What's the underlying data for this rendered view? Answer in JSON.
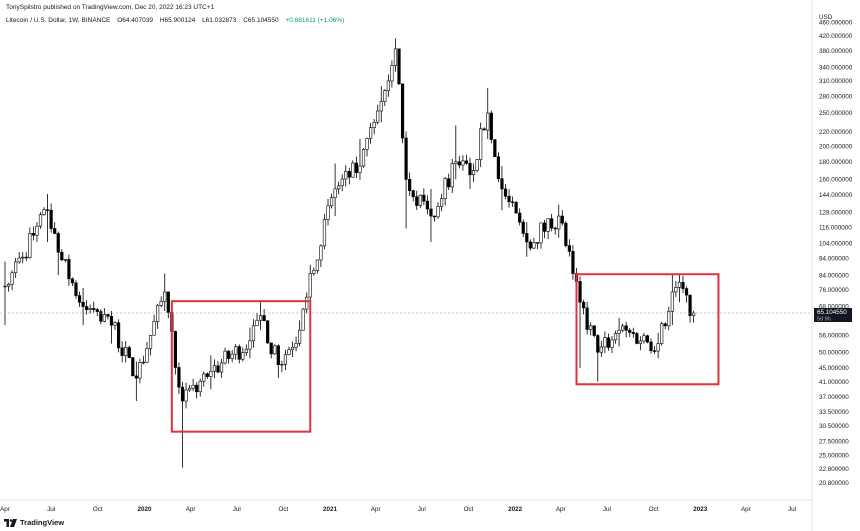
{
  "header": {
    "published": "TonySpilstro published on TradingView.com, Dec 20, 2022 16:23 UTC+1",
    "symbol": "Litecoin / U.S. Dollar, 1W, BINANCE",
    "open": "O64.407039",
    "high": "H65.900124",
    "low": "L61.032873",
    "close": "C65.104550",
    "change": "+0.681611 (+1.06%)"
  },
  "footer": {
    "brand": "TradingView"
  },
  "colors": {
    "candle_up": "#ffffff",
    "candle_down": "#000000",
    "candle_border": "#000000",
    "box": "#e0313b",
    "price_label_bg": "#131722"
  },
  "chart_data": {
    "type": "candlestick",
    "title": "Litecoin / U.S. Dollar, 1W, BINANCE",
    "currency": "USD",
    "scale": "log",
    "ylim": [
      18.5,
      500
    ],
    "last_price": {
      "value": 65.10455,
      "label": "65.104550",
      "countdown": "5d 9h"
    },
    "y_ticks": [
      {
        "value": 460,
        "label": "460.000000"
      },
      {
        "value": 420,
        "label": "420.000000"
      },
      {
        "value": 380,
        "label": "380.000000"
      },
      {
        "value": 340,
        "label": "340.000000"
      },
      {
        "value": 310,
        "label": "310.000000"
      },
      {
        "value": 280,
        "label": "280.000000"
      },
      {
        "value": 250,
        "label": "250.000000"
      },
      {
        "value": 220,
        "label": "220.000000"
      },
      {
        "value": 200,
        "label": "200.000000"
      },
      {
        "value": 180,
        "label": "180.000000"
      },
      {
        "value": 160,
        "label": "160.000000"
      },
      {
        "value": 144,
        "label": "144.000000"
      },
      {
        "value": 128,
        "label": "128.000000"
      },
      {
        "value": 116,
        "label": "116.000000"
      },
      {
        "value": 104,
        "label": "104.000000"
      },
      {
        "value": 94,
        "label": "94.000000"
      },
      {
        "value": 84,
        "label": "84.000000"
      },
      {
        "value": 76,
        "label": "76.000000"
      },
      {
        "value": 68,
        "label": "68.000000"
      },
      {
        "value": 56,
        "label": "56.000000"
      },
      {
        "value": 50,
        "label": "50.000000"
      },
      {
        "value": 45,
        "label": "45.000000"
      },
      {
        "value": 41,
        "label": "41.000000"
      },
      {
        "value": 37,
        "label": "37.000000"
      },
      {
        "value": 33.5,
        "label": "33.500000"
      },
      {
        "value": 30.5,
        "label": "30.500000"
      },
      {
        "value": 27.5,
        "label": "27.500000"
      },
      {
        "value": 25,
        "label": "25.000000"
      },
      {
        "value": 22.8,
        "label": "22.800000"
      },
      {
        "value": 20.8,
        "label": "20.800000"
      }
    ],
    "x_ticks": [
      {
        "date": "2019-04-01",
        "label": "Apr"
      },
      {
        "date": "2019-07-01",
        "label": "Jul"
      },
      {
        "date": "2019-10-01",
        "label": "Oct"
      },
      {
        "date": "2020-01-01",
        "label": "2020"
      },
      {
        "date": "2020-04-01",
        "label": "Apr"
      },
      {
        "date": "2020-07-01",
        "label": "Jul"
      },
      {
        "date": "2020-10-01",
        "label": "Oct"
      },
      {
        "date": "2021-01-01",
        "label": "2021"
      },
      {
        "date": "2021-04-01",
        "label": "Apr"
      },
      {
        "date": "2021-07-01",
        "label": "Jul"
      },
      {
        "date": "2021-10-01",
        "label": "Oct"
      },
      {
        "date": "2022-01-01",
        "label": "2022"
      },
      {
        "date": "2022-04-01",
        "label": "Apr"
      },
      {
        "date": "2022-07-01",
        "label": "Jul"
      },
      {
        "date": "2022-10-01",
        "label": "Oct"
      },
      {
        "date": "2023-01-01",
        "label": "2023"
      },
      {
        "date": "2023-04-01",
        "label": "Apr"
      },
      {
        "date": "2023-07-01",
        "label": "Jul"
      }
    ],
    "waypoints": [
      {
        "date": "2019-04-01",
        "close": 78,
        "high": 92,
        "low": 60
      },
      {
        "date": "2019-06-24",
        "close": 130,
        "high": 145,
        "low": 105
      },
      {
        "date": "2019-07-15",
        "close": 98,
        "high": 112,
        "low": 84
      },
      {
        "date": "2019-09-02",
        "close": 68,
        "high": 77,
        "low": 60
      },
      {
        "date": "2019-10-28",
        "close": 60,
        "high": 66,
        "low": 53
      },
      {
        "date": "2019-12-16",
        "close": 42,
        "high": 47,
        "low": 36
      },
      {
        "date": "2020-02-10",
        "close": 75,
        "high": 85,
        "low": 66
      },
      {
        "date": "2020-03-16",
        "close": 36,
        "high": 41,
        "low": 23
      },
      {
        "date": "2020-05-11",
        "close": 44,
        "high": 49,
        "low": 39
      },
      {
        "date": "2020-07-27",
        "close": 54,
        "high": 59,
        "low": 48
      },
      {
        "date": "2020-08-17",
        "close": 64,
        "high": 70,
        "low": 58
      },
      {
        "date": "2020-09-21",
        "close": 46,
        "high": 50,
        "low": 42
      },
      {
        "date": "2020-11-02",
        "close": 58,
        "high": 62,
        "low": 52
      },
      {
        "date": "2020-11-23",
        "close": 85,
        "high": 90,
        "low": 74
      },
      {
        "date": "2021-01-11",
        "close": 150,
        "high": 178,
        "low": 125
      },
      {
        "date": "2021-03-01",
        "close": 175,
        "high": 210,
        "low": 160
      },
      {
        "date": "2021-04-12",
        "close": 270,
        "high": 300,
        "low": 235
      },
      {
        "date": "2021-05-10",
        "close": 385,
        "high": 413,
        "low": 330
      },
      {
        "date": "2021-05-31",
        "close": 160,
        "high": 200,
        "low": 115
      },
      {
        "date": "2021-07-19",
        "close": 125,
        "high": 150,
        "low": 105
      },
      {
        "date": "2021-09-06",
        "close": 180,
        "high": 230,
        "low": 160
      },
      {
        "date": "2021-10-04",
        "close": 165,
        "high": 185,
        "low": 150
      },
      {
        "date": "2021-11-08",
        "close": 250,
        "high": 296,
        "low": 210
      },
      {
        "date": "2021-12-06",
        "close": 150,
        "high": 175,
        "low": 130
      },
      {
        "date": "2022-01-24",
        "close": 105,
        "high": 120,
        "low": 95
      },
      {
        "date": "2022-03-28",
        "close": 125,
        "high": 135,
        "low": 108
      },
      {
        "date": "2022-05-09",
        "close": 70,
        "high": 80,
        "low": 45
      },
      {
        "date": "2022-06-13",
        "close": 50,
        "high": 55,
        "low": 41
      },
      {
        "date": "2022-07-25",
        "close": 58,
        "high": 63,
        "low": 52
      },
      {
        "date": "2022-10-10",
        "close": 53,
        "high": 57,
        "low": 48
      },
      {
        "date": "2022-11-07",
        "close": 75,
        "high": 85,
        "low": 60
      },
      {
        "date": "2022-11-21",
        "close": 80,
        "high": 84,
        "low": 70
      },
      {
        "date": "2022-12-12",
        "close": 64,
        "high": 70,
        "low": 61
      },
      {
        "date": "2022-12-19",
        "close": 65.1,
        "high": 65.9,
        "low": 61.03
      }
    ],
    "annotations": [
      {
        "type": "rectangle",
        "start": "2020-02-24",
        "end": "2020-11-23",
        "top": 70.5,
        "bottom": 29.3
      },
      {
        "type": "rectangle",
        "start": "2022-05-02",
        "end": "2023-02-06",
        "top": 84.5,
        "bottom": 40.3
      }
    ]
  }
}
